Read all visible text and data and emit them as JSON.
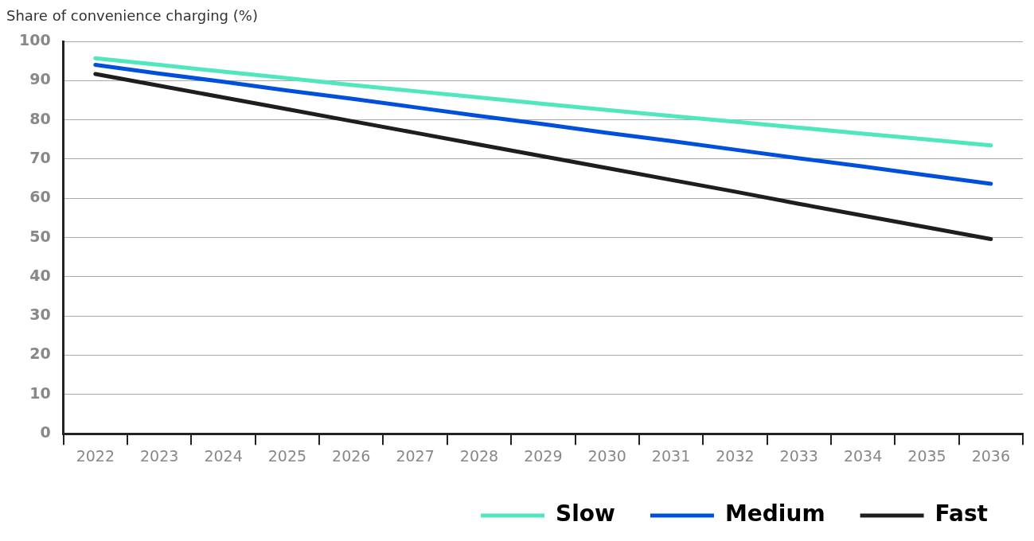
{
  "chart_data": {
    "type": "line",
    "ylabel": "Share of convenience charging (%)",
    "categories": [
      "2022",
      "2023",
      "2024",
      "2025",
      "2026",
      "2027",
      "2028",
      "2029",
      "2030",
      "2031",
      "2032",
      "2033",
      "2034",
      "2035",
      "2036"
    ],
    "series": [
      {
        "name": "Slow",
        "color": "#50e6be",
        "values": [
          95.7,
          94.0,
          92.3,
          90.6,
          88.9,
          87.3,
          85.7,
          84.1,
          82.5,
          81.0,
          79.5,
          78.0,
          76.5,
          75.0,
          73.5
        ]
      },
      {
        "name": "Medium",
        "color": "#0050dc",
        "values": [
          94.0,
          91.8,
          89.7,
          87.5,
          85.4,
          83.2,
          81.0,
          78.9,
          76.7,
          74.6,
          72.4,
          70.2,
          68.1,
          65.9,
          63.7
        ]
      },
      {
        "name": "Fast",
        "color": "#1e1e1e",
        "values": [
          91.7,
          88.7,
          85.7,
          82.7,
          79.7,
          76.7,
          73.7,
          70.7,
          67.7,
          64.7,
          61.7,
          58.6,
          55.6,
          52.6,
          49.6
        ]
      }
    ],
    "ylim": [
      0,
      100
    ],
    "yticks": [
      0,
      10,
      20,
      30,
      40,
      50,
      60,
      70,
      80,
      90,
      100
    ],
    "grid": "y",
    "legend": "bottom right",
    "marker": "none",
    "line_style": "solid"
  }
}
